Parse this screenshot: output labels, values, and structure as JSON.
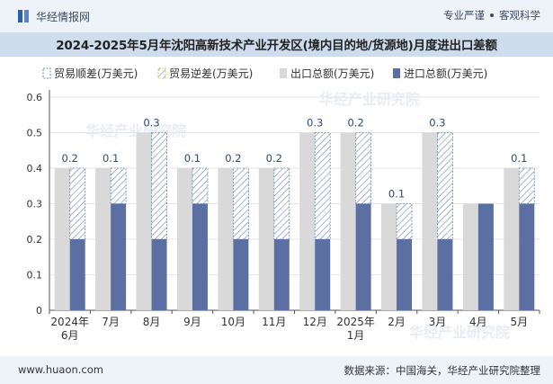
{
  "header": {
    "brand": "华经情报网",
    "tagline_1": "专业严谨",
    "tagline_2": "客观科学"
  },
  "footer": {
    "website": "www.huaon.com",
    "source": "数据来源：中国海关，华经产业研究院整理"
  },
  "watermark": "华经产业研究院",
  "colors": {
    "surplus": "#ffffff",
    "deficit_hatch": "#6b86b8",
    "export": "#d9d9d9",
    "import": "#5b6fa3"
  },
  "chart_data": {
    "type": "bar",
    "title": "2024-2025年5月年沈阳高新技术产业开发区(境内目的地/货源地)月度进出口差额",
    "categories": [
      "2024年6月",
      "7月",
      "8月",
      "9月",
      "10月",
      "11月",
      "12月",
      "2025年1月",
      "2月",
      "3月",
      "4月",
      "5月"
    ],
    "legend": [
      "贸易顺差(万美元)",
      "贸易逆差(万美元)",
      "出口总额(万美元)",
      "进口总额(万美元)"
    ],
    "series": [
      {
        "name": "出口总额(万美元)",
        "values": [
          0.4,
          0.4,
          0.5,
          0.4,
          0.4,
          0.4,
          0.5,
          0.5,
          0.3,
          0.5,
          0.3,
          0.4
        ]
      },
      {
        "name": "进口总额(万美元)",
        "values": [
          0.2,
          0.3,
          0.2,
          0.3,
          0.2,
          0.2,
          0.2,
          0.3,
          0.2,
          0.2,
          0.3,
          0.3
        ]
      },
      {
        "name": "贸易顺差(万美元)",
        "values": [
          0.2,
          0.1,
          0.3,
          0.1,
          0.2,
          0.2,
          0.3,
          0.2,
          0.1,
          0.3,
          0,
          0.1
        ]
      },
      {
        "name": "贸易逆差(万美元)",
        "values": [
          0,
          0,
          0,
          0,
          0,
          0,
          0,
          0,
          0,
          0,
          0,
          0
        ]
      }
    ],
    "data_labels": [
      "0.2",
      "0.1",
      "0.3",
      "0.1",
      "0.2",
      "0.2",
      "0.3",
      "0.2",
      "0.1",
      "0.3",
      "",
      "0.1"
    ],
    "yticks": [
      "0",
      "0.1",
      "0.2",
      "0.3",
      "0.4",
      "0.5",
      "0.6"
    ],
    "ylim": [
      0,
      0.6
    ],
    "xlabel": "",
    "ylabel": ""
  }
}
